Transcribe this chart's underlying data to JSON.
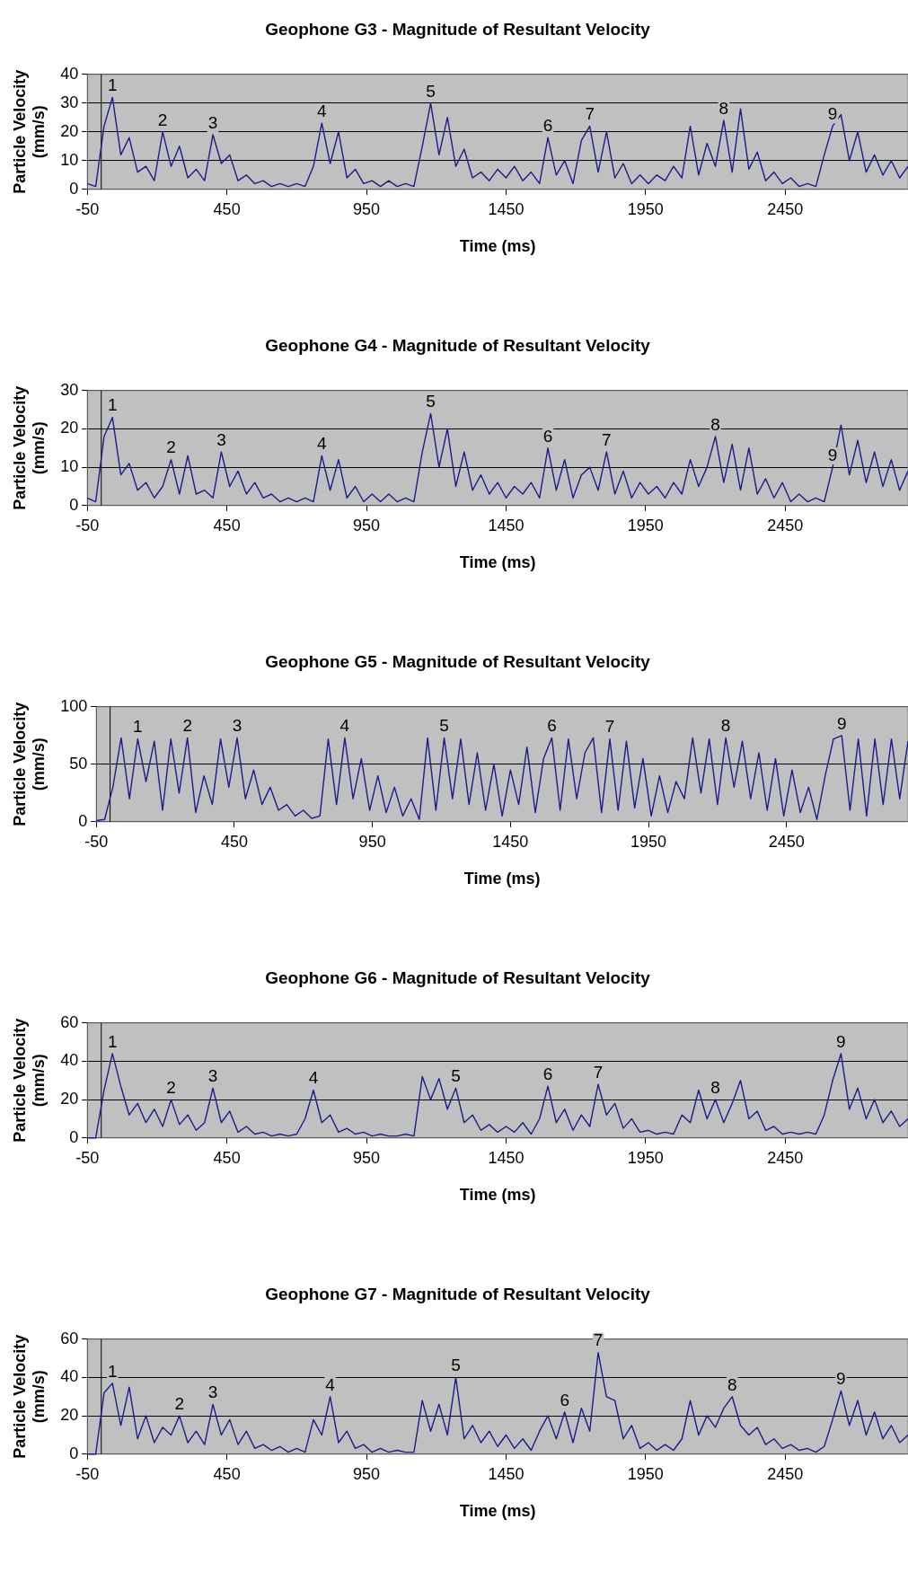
{
  "chart_data": [
    {
      "type": "line",
      "title": "Geophone G3 - Magnitude of Resultant Velocity",
      "xlabel": "Time (ms)",
      "ylabel": "Particle Velocity (mm/s)",
      "xlim": [
        -50,
        2890
      ],
      "ylim": [
        0,
        40
      ],
      "xticks": [
        -50,
        450,
        950,
        1450,
        1950,
        2450
      ],
      "yticks": [
        0,
        10,
        20,
        30,
        40
      ],
      "grid": "y",
      "x": [
        -50,
        -20,
        10,
        40,
        70,
        100,
        130,
        160,
        190,
        220,
        250,
        280,
        310,
        340,
        370,
        400,
        430,
        460,
        490,
        520,
        550,
        580,
        610,
        640,
        670,
        700,
        730,
        760,
        790,
        820,
        850,
        880,
        910,
        940,
        970,
        1000,
        1030,
        1060,
        1090,
        1120,
        1150,
        1180,
        1210,
        1240,
        1270,
        1300,
        1330,
        1360,
        1390,
        1420,
        1450,
        1480,
        1510,
        1540,
        1570,
        1600,
        1630,
        1660,
        1690,
        1720,
        1750,
        1780,
        1810,
        1840,
        1870,
        1900,
        1930,
        1960,
        1990,
        2020,
        2050,
        2080,
        2110,
        2140,
        2170,
        2200,
        2230,
        2260,
        2290,
        2320,
        2350,
        2380,
        2410,
        2440,
        2470,
        2500,
        2530,
        2560,
        2590,
        2620,
        2650,
        2680,
        2710,
        2740,
        2770,
        2800,
        2830,
        2860,
        2890
      ],
      "series": [
        {
          "color": "#1c1c8a",
          "values": [
            2,
            1,
            22,
            32,
            12,
            18,
            6,
            8,
            3,
            20,
            8,
            15,
            4,
            7,
            3,
            19,
            9,
            12,
            3,
            5,
            2,
            3,
            1,
            2,
            1,
            2,
            1,
            8,
            23,
            9,
            20,
            4,
            7,
            2,
            3,
            1,
            3,
            1,
            2,
            1,
            15,
            30,
            12,
            25,
            8,
            14,
            4,
            6,
            3,
            7,
            4,
            8,
            3,
            6,
            2,
            18,
            5,
            10,
            2,
            17,
            22,
            6,
            20,
            4,
            9,
            2,
            5,
            2,
            5,
            3,
            8,
            4,
            22,
            5,
            16,
            8,
            24,
            6,
            28,
            7,
            13,
            3,
            6,
            2,
            4,
            1,
            2,
            1,
            12,
            22,
            26,
            10,
            20,
            6,
            12,
            5,
            10,
            4,
            8
          ]
        }
      ],
      "ref_lines": [
        {
          "axis": "x",
          "value": 0
        }
      ],
      "annotations": [
        {
          "text": "1",
          "x": 40,
          "y": 32
        },
        {
          "text": "2",
          "x": 220,
          "y": 20
        },
        {
          "text": "3",
          "x": 400,
          "y": 19
        },
        {
          "text": "4",
          "x": 790,
          "y": 23
        },
        {
          "text": "5",
          "x": 1180,
          "y": 30
        },
        {
          "text": "6",
          "x": 1600,
          "y": 18
        },
        {
          "text": "7",
          "x": 1750,
          "y": 22
        },
        {
          "text": "8",
          "x": 2230,
          "y": 24
        },
        {
          "text": "9",
          "x": 2620,
          "y": 22
        }
      ]
    },
    {
      "type": "line",
      "title": "Geophone G4 - Magnitude of Resultant Velocity",
      "xlabel": "Time (ms)",
      "ylabel": "Particle Velocity (mm/s)",
      "xlim": [
        -50,
        2890
      ],
      "ylim": [
        0,
        30
      ],
      "xticks": [
        -50,
        450,
        950,
        1450,
        1950,
        2450
      ],
      "yticks": [
        0,
        10,
        20,
        30
      ],
      "grid": "y",
      "x": [
        -50,
        -20,
        10,
        40,
        70,
        100,
        130,
        160,
        190,
        220,
        250,
        280,
        310,
        340,
        370,
        400,
        430,
        460,
        490,
        520,
        550,
        580,
        610,
        640,
        670,
        700,
        730,
        760,
        790,
        820,
        850,
        880,
        910,
        940,
        970,
        1000,
        1030,
        1060,
        1090,
        1120,
        1150,
        1180,
        1210,
        1240,
        1270,
        1300,
        1330,
        1360,
        1390,
        1420,
        1450,
        1480,
        1510,
        1540,
        1570,
        1600,
        1630,
        1660,
        1690,
        1720,
        1750,
        1780,
        1810,
        1840,
        1870,
        1900,
        1930,
        1960,
        1990,
        2020,
        2050,
        2080,
        2110,
        2140,
        2170,
        2200,
        2230,
        2260,
        2290,
        2320,
        2350,
        2380,
        2410,
        2440,
        2470,
        2500,
        2530,
        2560,
        2590,
        2620,
        2650,
        2680,
        2710,
        2740,
        2770,
        2800,
        2830,
        2860,
        2890
      ],
      "series": [
        {
          "color": "#1c1c8a",
          "values": [
            2,
            1,
            18,
            23,
            8,
            11,
            4,
            6,
            2,
            5,
            12,
            3,
            13,
            3,
            4,
            2,
            14,
            5,
            9,
            3,
            6,
            2,
            3,
            1,
            2,
            1,
            2,
            1,
            13,
            4,
            12,
            2,
            5,
            1,
            3,
            1,
            3,
            1,
            2,
            1,
            14,
            24,
            10,
            20,
            5,
            14,
            4,
            8,
            3,
            6,
            2,
            5,
            3,
            6,
            2,
            15,
            4,
            12,
            2,
            8,
            10,
            4,
            14,
            3,
            9,
            2,
            6,
            3,
            5,
            2,
            6,
            3,
            12,
            5,
            10,
            18,
            6,
            16,
            4,
            15,
            3,
            7,
            2,
            6,
            1,
            3,
            1,
            2,
            1,
            10,
            21,
            8,
            17,
            6,
            14,
            5,
            12,
            4,
            9
          ]
        }
      ],
      "ref_lines": [
        {
          "axis": "x",
          "value": 0
        }
      ],
      "annotations": [
        {
          "text": "1",
          "x": 40,
          "y": 23
        },
        {
          "text": "2",
          "x": 250,
          "y": 12
        },
        {
          "text": "3",
          "x": 430,
          "y": 14
        },
        {
          "text": "4",
          "x": 790,
          "y": 13
        },
        {
          "text": "5",
          "x": 1180,
          "y": 24
        },
        {
          "text": "6",
          "x": 1600,
          "y": 15
        },
        {
          "text": "7",
          "x": 1810,
          "y": 14
        },
        {
          "text": "8",
          "x": 2200,
          "y": 18
        },
        {
          "text": "9",
          "x": 2620,
          "y": 10
        }
      ]
    },
    {
      "type": "line",
      "title": "Geophone G5 - Magnitude of Resultant Velocity",
      "xlabel": "Time (ms)",
      "ylabel": "Particle Velocity (mm/s)",
      "xlim": [
        -50,
        2890
      ],
      "ylim": [
        0,
        100
      ],
      "xticks": [
        -50,
        450,
        950,
        1450,
        1950,
        2450
      ],
      "yticks": [
        0,
        50,
        100
      ],
      "grid": "y",
      "x": [
        -50,
        -20,
        10,
        40,
        70,
        100,
        130,
        160,
        190,
        220,
        250,
        280,
        310,
        340,
        370,
        400,
        430,
        460,
        490,
        520,
        550,
        580,
        610,
        640,
        670,
        700,
        730,
        760,
        790,
        820,
        850,
        880,
        910,
        940,
        970,
        1000,
        1030,
        1060,
        1090,
        1120,
        1150,
        1180,
        1210,
        1240,
        1270,
        1300,
        1330,
        1360,
        1390,
        1420,
        1450,
        1480,
        1510,
        1540,
        1570,
        1600,
        1630,
        1660,
        1690,
        1720,
        1750,
        1780,
        1810,
        1840,
        1870,
        1900,
        1930,
        1960,
        1990,
        2020,
        2050,
        2080,
        2110,
        2140,
        2170,
        2200,
        2230,
        2260,
        2290,
        2320,
        2350,
        2380,
        2410,
        2440,
        2470,
        2500,
        2530,
        2560,
        2590,
        2620,
        2650,
        2680,
        2710,
        2740,
        2770,
        2800,
        2830,
        2860,
        2890
      ],
      "series": [
        {
          "color": "#1c1c8a",
          "values": [
            1,
            2,
            30,
            73,
            20,
            72,
            35,
            70,
            10,
            72,
            25,
            73,
            8,
            40,
            15,
            72,
            30,
            73,
            20,
            45,
            15,
            30,
            10,
            15,
            5,
            10,
            3,
            5,
            72,
            15,
            73,
            20,
            55,
            10,
            40,
            8,
            30,
            5,
            20,
            2,
            73,
            10,
            73,
            20,
            72,
            15,
            60,
            10,
            50,
            5,
            45,
            15,
            65,
            8,
            55,
            73,
            10,
            72,
            20,
            60,
            73,
            8,
            72,
            10,
            70,
            12,
            55,
            5,
            40,
            8,
            35,
            20,
            73,
            25,
            72,
            15,
            73,
            30,
            70,
            20,
            60,
            10,
            55,
            5,
            45,
            8,
            30,
            2,
            40,
            72,
            75,
            10,
            72,
            5,
            72,
            15,
            72,
            20,
            70
          ]
        }
      ],
      "ref_lines": [
        {
          "axis": "x",
          "value": 0
        }
      ],
      "annotations": [
        {
          "text": "1",
          "x": 100,
          "y": 72
        },
        {
          "text": "2",
          "x": 280,
          "y": 73
        },
        {
          "text": "3",
          "x": 460,
          "y": 73
        },
        {
          "text": "4",
          "x": 850,
          "y": 73
        },
        {
          "text": "5",
          "x": 1210,
          "y": 73
        },
        {
          "text": "6",
          "x": 1600,
          "y": 73
        },
        {
          "text": "7",
          "x": 1810,
          "y": 72
        },
        {
          "text": "8",
          "x": 2230,
          "y": 73
        },
        {
          "text": "9",
          "x": 2650,
          "y": 75
        }
      ]
    },
    {
      "type": "line",
      "title": "Geophone G6 - Magnitude of Resultant Velocity",
      "xlabel": "Time (ms)",
      "ylabel": "Particle Velocity (mm/s)",
      "xlim": [
        -50,
        2890
      ],
      "ylim": [
        0,
        60
      ],
      "xticks": [
        -50,
        450,
        950,
        1450,
        1950,
        2450
      ],
      "yticks": [
        0,
        20,
        40,
        60
      ],
      "grid": "y",
      "x": [
        -50,
        -20,
        10,
        40,
        70,
        100,
        130,
        160,
        190,
        220,
        250,
        280,
        310,
        340,
        370,
        400,
        430,
        460,
        490,
        520,
        550,
        580,
        610,
        640,
        670,
        700,
        730,
        760,
        790,
        820,
        850,
        880,
        910,
        940,
        970,
        1000,
        1030,
        1060,
        1090,
        1120,
        1150,
        1180,
        1210,
        1240,
        1270,
        1300,
        1330,
        1360,
        1390,
        1420,
        1450,
        1480,
        1510,
        1540,
        1570,
        1600,
        1630,
        1660,
        1690,
        1720,
        1750,
        1780,
        1810,
        1840,
        1870,
        1900,
        1930,
        1960,
        1990,
        2020,
        2050,
        2080,
        2110,
        2140,
        2170,
        2200,
        2230,
        2260,
        2290,
        2320,
        2350,
        2380,
        2410,
        2440,
        2470,
        2500,
        2530,
        2560,
        2590,
        2620,
        2650,
        2680,
        2710,
        2740,
        2770,
        2800,
        2830,
        2860,
        2890
      ],
      "series": [
        {
          "color": "#1c1c8a",
          "values": [
            0,
            0,
            25,
            44,
            27,
            12,
            18,
            8,
            15,
            6,
            20,
            7,
            12,
            4,
            8,
            26,
            8,
            14,
            3,
            6,
            2,
            3,
            1,
            2,
            1,
            2,
            10,
            25,
            8,
            12,
            3,
            5,
            2,
            3,
            1,
            2,
            1,
            1,
            2,
            1,
            32,
            20,
            31,
            15,
            26,
            8,
            12,
            4,
            7,
            3,
            6,
            3,
            8,
            2,
            10,
            27,
            8,
            15,
            4,
            12,
            6,
            28,
            12,
            18,
            5,
            10,
            3,
            4,
            2,
            3,
            2,
            12,
            8,
            25,
            10,
            20,
            8,
            18,
            30,
            10,
            14,
            4,
            6,
            2,
            3,
            2,
            3,
            2,
            12,
            30,
            44,
            15,
            26,
            10,
            20,
            8,
            14,
            6,
            10
          ]
        }
      ],
      "ref_lines": [
        {
          "axis": "x",
          "value": 0
        }
      ],
      "annotations": [
        {
          "text": "1",
          "x": 40,
          "y": 44
        },
        {
          "text": "2",
          "x": 250,
          "y": 20
        },
        {
          "text": "3",
          "x": 400,
          "y": 26
        },
        {
          "text": "4",
          "x": 760,
          "y": 25
        },
        {
          "text": "5",
          "x": 1270,
          "y": 26
        },
        {
          "text": "6",
          "x": 1600,
          "y": 27
        },
        {
          "text": "7",
          "x": 1780,
          "y": 28
        },
        {
          "text": "8",
          "x": 2200,
          "y": 20
        },
        {
          "text": "9",
          "x": 2650,
          "y": 44
        }
      ]
    },
    {
      "type": "line",
      "title": "Geophone G7 - Magnitude of Resultant Velocity",
      "xlabel": "Time (ms)",
      "ylabel": "Particle Velocity (mm/s)",
      "xlim": [
        -50,
        2890
      ],
      "ylim": [
        0,
        60
      ],
      "xticks": [
        -50,
        450,
        950,
        1450,
        1950,
        2450
      ],
      "yticks": [
        0,
        20,
        40,
        60
      ],
      "grid": "y",
      "x": [
        -50,
        -20,
        10,
        40,
        70,
        100,
        130,
        160,
        190,
        220,
        250,
        280,
        310,
        340,
        370,
        400,
        430,
        460,
        490,
        520,
        550,
        580,
        610,
        640,
        670,
        700,
        730,
        760,
        790,
        820,
        850,
        880,
        910,
        940,
        970,
        1000,
        1030,
        1060,
        1090,
        1120,
        1150,
        1180,
        1210,
        1240,
        1270,
        1300,
        1330,
        1360,
        1390,
        1420,
        1450,
        1480,
        1510,
        1540,
        1570,
        1600,
        1630,
        1660,
        1690,
        1720,
        1750,
        1780,
        1810,
        1840,
        1870,
        1900,
        1930,
        1960,
        1990,
        2020,
        2050,
        2080,
        2110,
        2140,
        2170,
        2200,
        2230,
        2260,
        2290,
        2320,
        2350,
        2380,
        2410,
        2440,
        2470,
        2500,
        2530,
        2560,
        2590,
        2620,
        2650,
        2680,
        2710,
        2740,
        2770,
        2800,
        2830,
        2860,
        2890
      ],
      "series": [
        {
          "color": "#1c1c8a",
          "values": [
            0,
            0,
            32,
            37,
            15,
            35,
            8,
            20,
            6,
            14,
            10,
            20,
            6,
            12,
            5,
            26,
            10,
            18,
            5,
            12,
            3,
            5,
            2,
            4,
            1,
            3,
            1,
            18,
            10,
            30,
            6,
            12,
            3,
            5,
            1,
            3,
            1,
            2,
            1,
            1,
            28,
            12,
            26,
            10,
            40,
            8,
            15,
            6,
            12,
            4,
            10,
            3,
            8,
            2,
            12,
            20,
            8,
            22,
            6,
            24,
            12,
            53,
            30,
            28,
            8,
            15,
            3,
            6,
            2,
            5,
            2,
            8,
            28,
            10,
            20,
            14,
            24,
            30,
            15,
            10,
            14,
            5,
            8,
            3,
            5,
            2,
            3,
            1,
            4,
            18,
            33,
            15,
            28,
            10,
            22,
            8,
            15,
            6,
            10
          ]
        }
      ],
      "ref_lines": [
        {
          "axis": "x",
          "value": 0
        }
      ],
      "annotations": [
        {
          "text": "1",
          "x": 40,
          "y": 37
        },
        {
          "text": "2",
          "x": 280,
          "y": 20
        },
        {
          "text": "3",
          "x": 400,
          "y": 26
        },
        {
          "text": "4",
          "x": 820,
          "y": 30
        },
        {
          "text": "5",
          "x": 1270,
          "y": 40
        },
        {
          "text": "6",
          "x": 1660,
          "y": 22
        },
        {
          "text": "7",
          "x": 1780,
          "y": 53
        },
        {
          "text": "8",
          "x": 2260,
          "y": 30
        },
        {
          "text": "9",
          "x": 2650,
          "y": 33
        }
      ]
    }
  ]
}
